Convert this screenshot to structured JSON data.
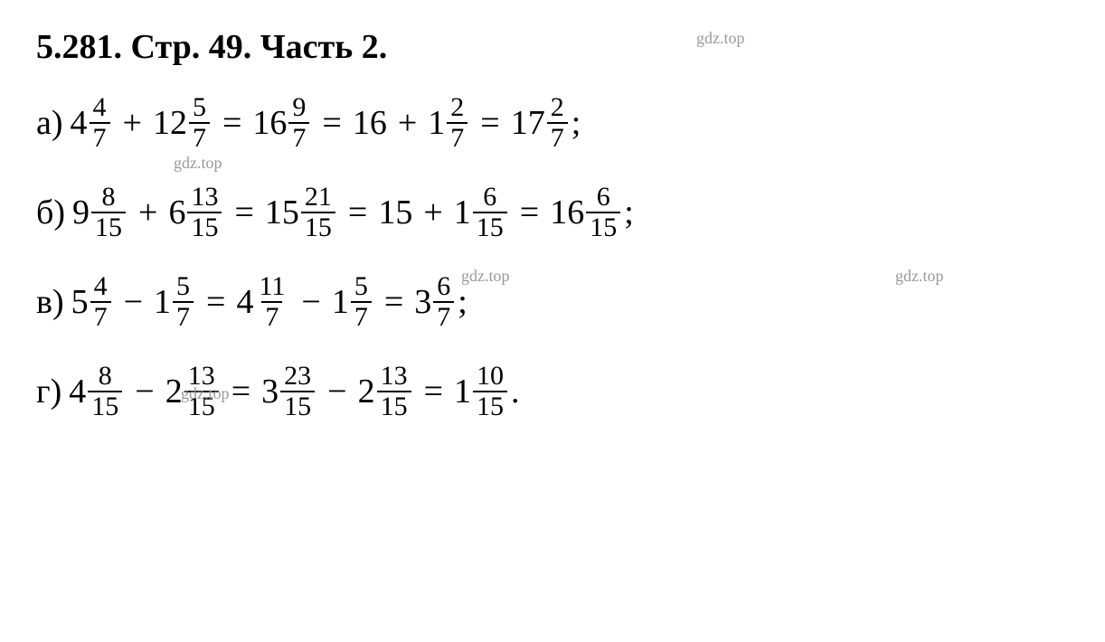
{
  "header": {
    "problem_number": "5.281.",
    "page_label": "Стр. 49.",
    "part_label": "Часть 2."
  },
  "watermarks": {
    "text": "gdz.top",
    "color": "#999999",
    "fontsize": 18
  },
  "colors": {
    "text": "#000000",
    "background": "#ffffff",
    "fraction_bar": "#000000"
  },
  "typography": {
    "header_fontsize": 38,
    "body_fontsize": 38,
    "fraction_fontsize": 30,
    "font_family": "Times New Roman",
    "header_weight": "bold"
  },
  "lines": [
    {
      "label": "а)",
      "terms": [
        {
          "type": "mixed",
          "whole": "4",
          "num": "4",
          "den": "7"
        },
        {
          "type": "op",
          "value": "+"
        },
        {
          "type": "mixed",
          "whole": "12",
          "num": "5",
          "den": "7"
        },
        {
          "type": "eq",
          "value": "="
        },
        {
          "type": "mixed",
          "whole": "16",
          "num": "9",
          "den": "7"
        },
        {
          "type": "eq",
          "value": "="
        },
        {
          "type": "whole",
          "value": "16"
        },
        {
          "type": "op",
          "value": "+"
        },
        {
          "type": "mixed",
          "whole": "1",
          "num": "2",
          "den": "7"
        },
        {
          "type": "eq",
          "value": "="
        },
        {
          "type": "mixed",
          "whole": "17",
          "num": "2",
          "den": "7"
        },
        {
          "type": "semi",
          "value": ";"
        }
      ]
    },
    {
      "label": "б)",
      "terms": [
        {
          "type": "mixed",
          "whole": "9",
          "num": "8",
          "den": "15"
        },
        {
          "type": "op",
          "value": "+"
        },
        {
          "type": "mixed",
          "whole": "6",
          "num": "13",
          "den": "15"
        },
        {
          "type": "eq",
          "value": "="
        },
        {
          "type": "mixed",
          "whole": "15",
          "num": "21",
          "den": "15"
        },
        {
          "type": "eq",
          "value": "="
        },
        {
          "type": "whole",
          "value": "15"
        },
        {
          "type": "op",
          "value": "+"
        },
        {
          "type": "mixed",
          "whole": "1",
          "num": "6",
          "den": "15"
        },
        {
          "type": "eq",
          "value": "="
        },
        {
          "type": "mixed",
          "whole": "16",
          "num": "6",
          "den": "15"
        },
        {
          "type": "semi",
          "value": ";"
        }
      ]
    },
    {
      "label": "в)",
      "terms": [
        {
          "type": "mixed",
          "whole": "5",
          "num": "4",
          "den": "7"
        },
        {
          "type": "op",
          "value": "−"
        },
        {
          "type": "mixed",
          "whole": "1",
          "num": "5",
          "den": "7"
        },
        {
          "type": "eq",
          "value": "="
        },
        {
          "type": "mixed",
          "whole": "4",
          "num": "11",
          "den": "7"
        },
        {
          "type": "op",
          "value": "−"
        },
        {
          "type": "mixed",
          "whole": "1",
          "num": "5",
          "den": "7"
        },
        {
          "type": "eq",
          "value": "="
        },
        {
          "type": "mixed",
          "whole": "3",
          "num": "6",
          "den": "7"
        },
        {
          "type": "semi",
          "value": ";"
        }
      ]
    },
    {
      "label": "г)",
      "terms": [
        {
          "type": "mixed",
          "whole": "4",
          "num": "8",
          "den": "15"
        },
        {
          "type": "op",
          "value": "−"
        },
        {
          "type": "mixed",
          "whole": "2",
          "num": "13",
          "den": "15"
        },
        {
          "type": "eq",
          "value": "="
        },
        {
          "type": "mixed",
          "whole": "3",
          "num": "23",
          "den": "15"
        },
        {
          "type": "op",
          "value": "−"
        },
        {
          "type": "mixed",
          "whole": "2",
          "num": "13",
          "den": "15"
        },
        {
          "type": "eq",
          "value": "="
        },
        {
          "type": "mixed",
          "whole": "1",
          "num": "10",
          "den": "15"
        },
        {
          "type": "period",
          "value": "."
        }
      ]
    }
  ]
}
